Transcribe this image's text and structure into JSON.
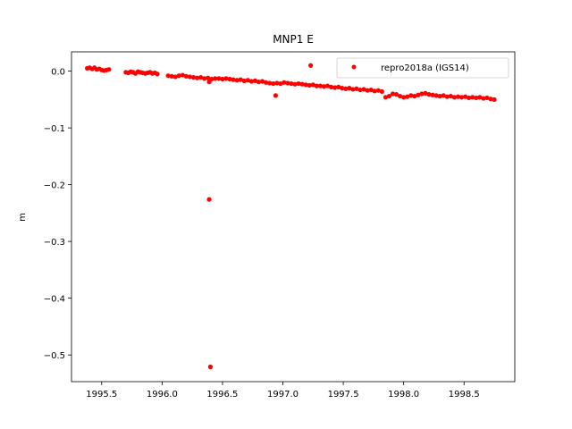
{
  "chart_data": {
    "type": "scatter",
    "title": "MNP1 E",
    "xlabel": "",
    "ylabel": "m",
    "xlim": [
      1995.25,
      1998.92
    ],
    "ylim": [
      -0.547,
      0.034
    ],
    "xticks": [
      1995.5,
      1996.0,
      1996.5,
      1997.0,
      1997.5,
      1998.0,
      1998.5
    ],
    "xtick_labels": [
      "1995.5",
      "1996.0",
      "1996.5",
      "1997.0",
      "1997.5",
      "1998.0",
      "1998.5"
    ],
    "yticks": [
      0.0,
      -0.1,
      -0.2,
      -0.3,
      -0.4,
      -0.5
    ],
    "ytick_labels": [
      "0.0",
      "−0.1",
      "−0.2",
      "−0.3",
      "−0.4",
      "−0.5"
    ],
    "grid": false,
    "legend_position": "top-right",
    "series": [
      {
        "name": "repro2018a (IGS14)",
        "color": "#ff0000",
        "marker": "dot",
        "x": [
          1995.38,
          1995.4,
          1995.42,
          1995.44,
          1995.46,
          1995.48,
          1995.5,
          1995.52,
          1995.54,
          1995.56,
          1995.7,
          1995.72,
          1995.74,
          1995.76,
          1995.78,
          1995.8,
          1995.82,
          1995.84,
          1995.86,
          1995.88,
          1995.9,
          1995.92,
          1995.94,
          1995.96,
          1996.05,
          1996.08,
          1996.11,
          1996.14,
          1996.17,
          1996.2,
          1996.23,
          1996.26,
          1996.29,
          1996.32,
          1996.35,
          1996.38,
          1996.41,
          1996.44,
          1996.47,
          1996.5,
          1996.53,
          1996.56,
          1996.59,
          1996.62,
          1996.65,
          1996.68,
          1996.71,
          1996.74,
          1996.77,
          1996.8,
          1996.83,
          1996.86,
          1996.89,
          1996.92,
          1996.95,
          1996.98,
          1997.01,
          1997.04,
          1997.07,
          1997.1,
          1997.13,
          1997.16,
          1997.19,
          1997.22,
          1997.25,
          1997.28,
          1997.31,
          1997.34,
          1997.37,
          1997.4,
          1997.43,
          1997.46,
          1997.49,
          1997.52,
          1997.55,
          1997.58,
          1997.61,
          1997.64,
          1997.67,
          1997.7,
          1997.73,
          1997.76,
          1997.79,
          1997.82,
          1997.85,
          1997.88,
          1997.91,
          1997.94,
          1997.97,
          1998.0,
          1998.03,
          1998.06,
          1998.09,
          1998.12,
          1998.15,
          1998.18,
          1998.21,
          1998.24,
          1998.27,
          1998.3,
          1998.33,
          1998.36,
          1998.39,
          1998.42,
          1998.45,
          1998.48,
          1998.51,
          1998.54,
          1998.57,
          1998.6,
          1998.63,
          1998.66,
          1998.69,
          1998.72,
          1998.75,
          1996.39,
          1996.39,
          1996.4,
          1996.94,
          1997.23
        ],
        "y": [
          0.005,
          0.006,
          0.004,
          0.006,
          0.003,
          0.004,
          0.002,
          0.001,
          0.002,
          0.003,
          -0.002,
          -0.003,
          -0.001,
          -0.002,
          -0.004,
          -0.001,
          -0.002,
          -0.003,
          -0.004,
          -0.003,
          -0.002,
          -0.004,
          -0.003,
          -0.005,
          -0.008,
          -0.009,
          -0.01,
          -0.008,
          -0.007,
          -0.009,
          -0.01,
          -0.011,
          -0.012,
          -0.011,
          -0.013,
          -0.012,
          -0.014,
          -0.013,
          -0.013,
          -0.014,
          -0.013,
          -0.014,
          -0.015,
          -0.016,
          -0.015,
          -0.017,
          -0.016,
          -0.018,
          -0.017,
          -0.019,
          -0.018,
          -0.02,
          -0.021,
          -0.022,
          -0.021,
          -0.022,
          -0.02,
          -0.021,
          -0.022,
          -0.023,
          -0.022,
          -0.023,
          -0.024,
          -0.025,
          -0.024,
          -0.026,
          -0.026,
          -0.027,
          -0.026,
          -0.028,
          -0.029,
          -0.028,
          -0.03,
          -0.031,
          -0.03,
          -0.032,
          -0.031,
          -0.033,
          -0.032,
          -0.034,
          -0.033,
          -0.035,
          -0.034,
          -0.036,
          -0.046,
          -0.044,
          -0.04,
          -0.041,
          -0.044,
          -0.046,
          -0.045,
          -0.043,
          -0.044,
          -0.042,
          -0.04,
          -0.039,
          -0.041,
          -0.042,
          -0.043,
          -0.044,
          -0.043,
          -0.045,
          -0.044,
          -0.046,
          -0.045,
          -0.046,
          -0.045,
          -0.047,
          -0.046,
          -0.047,
          -0.046,
          -0.048,
          -0.047,
          -0.049,
          -0.05,
          -0.019,
          -0.226,
          -0.521,
          -0.043,
          0.01
        ]
      }
    ]
  }
}
